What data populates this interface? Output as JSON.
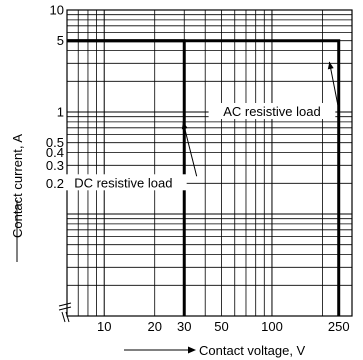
{
  "chart_data": {
    "type": "line",
    "title": "",
    "xlabel": "Contact voltage, V",
    "ylabel": "Contact current, A",
    "xscale": "log",
    "yscale": "log",
    "xlim": [
      6,
      300
    ],
    "ylim": [
      0.01,
      10
    ],
    "grid": true,
    "x_ticks": [
      {
        "value": 10,
        "label": "10"
      },
      {
        "value": 20,
        "label": "20"
      },
      {
        "value": 30,
        "label": "30"
      },
      {
        "value": 50,
        "label": "50"
      },
      {
        "value": 100,
        "label": "100"
      },
      {
        "value": 250,
        "label": "250"
      }
    ],
    "y_ticks": [
      {
        "value": 10,
        "label": "10"
      },
      {
        "value": 5,
        "label": "5"
      },
      {
        "value": 1,
        "label": "1"
      },
      {
        "value": 0.5,
        "label": "0.5"
      },
      {
        "value": 0.4,
        "label": "0.4"
      },
      {
        "value": 0.3,
        "label": "0.3"
      },
      {
        "value": 0.2,
        "label": "0.2"
      }
    ],
    "series": [
      {
        "name": "AC resistive load",
        "x": [
          6,
          250,
          250
        ],
        "y": [
          5,
          5,
          0.01
        ]
      },
      {
        "name": "DC resistive load",
        "x": [
          6,
          30,
          30
        ],
        "y": [
          5,
          5,
          0.01
        ]
      }
    ],
    "annotations": [
      {
        "text": "AC resistive load",
        "x": 100,
        "y": 1.0,
        "arrow_to": [
          220,
          3.1
        ]
      },
      {
        "text": "DC resistive load",
        "x": 13,
        "y": 0.2,
        "arrow_to": [
          29.5,
          0.8
        ]
      }
    ]
  }
}
